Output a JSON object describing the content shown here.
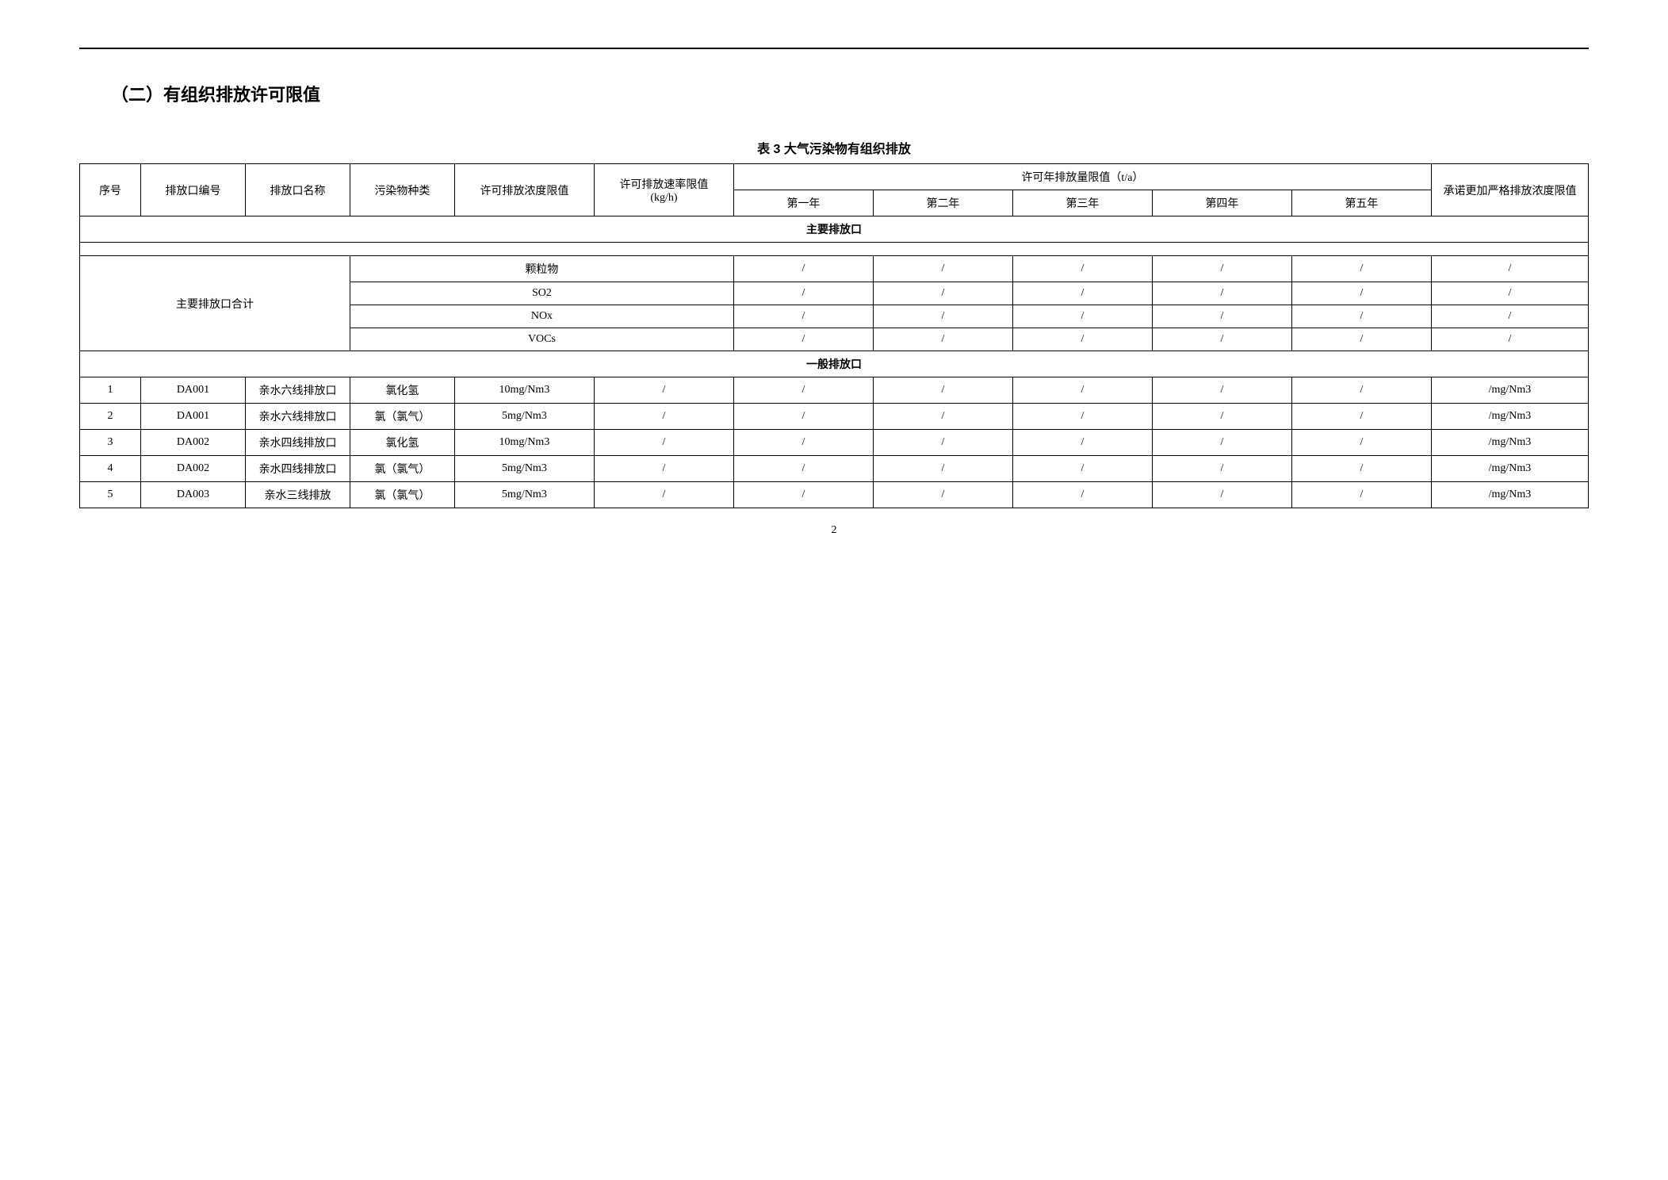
{
  "section_title": "（二）有组织排放许可限值",
  "table_caption": "表 3  大气污染物有组织排放",
  "headers": {
    "seq": "序号",
    "out_code": "排放口编号",
    "out_name": "排放口名称",
    "pollutant": "污染物种类",
    "conc_limit": "许可排放浓度限值",
    "rate_limit_top": "许可排放速率限值",
    "rate_limit_bottom": "(kg/h)",
    "annual_top": "许可年排放量限值（t/a）",
    "y1": "第一年",
    "y2": "第二年",
    "y3": "第三年",
    "y4": "第四年",
    "y5": "第五年",
    "strict_top": "承诺更加严格排放浓度限值"
  },
  "sections": {
    "main": "主要排放口",
    "general": "一般排放口"
  },
  "main_total_label": "主要排放口合计",
  "main_rows": [
    {
      "pollutant": "颗粒物",
      "y1": "/",
      "y2": "/",
      "y3": "/",
      "y4": "/",
      "y5": "/",
      "strict": "/"
    },
    {
      "pollutant": "SO2",
      "y1": "/",
      "y2": "/",
      "y3": "/",
      "y4": "/",
      "y5": "/",
      "strict": "/"
    },
    {
      "pollutant": "NOx",
      "y1": "/",
      "y2": "/",
      "y3": "/",
      "y4": "/",
      "y5": "/",
      "strict": "/"
    },
    {
      "pollutant": "VOCs",
      "y1": "/",
      "y2": "/",
      "y3": "/",
      "y4": "/",
      "y5": "/",
      "strict": "/"
    }
  ],
  "general_rows": [
    {
      "seq": "1",
      "code": "DA001",
      "name": "亲水六线排放口",
      "pollutant": "氯化氢",
      "conc": "10mg/Nm3",
      "rate": "/",
      "y1": "/",
      "y2": "/",
      "y3": "/",
      "y4": "/",
      "y5": "/",
      "strict": "/mg/Nm3"
    },
    {
      "seq": "2",
      "code": "DA001",
      "name": "亲水六线排放口",
      "pollutant": "氯（氯气）",
      "conc": "5mg/Nm3",
      "rate": "/",
      "y1": "/",
      "y2": "/",
      "y3": "/",
      "y4": "/",
      "y5": "/",
      "strict": "/mg/Nm3"
    },
    {
      "seq": "3",
      "code": "DA002",
      "name": "亲水四线排放口",
      "pollutant": "氯化氢",
      "conc": "10mg/Nm3",
      "rate": "/",
      "y1": "/",
      "y2": "/",
      "y3": "/",
      "y4": "/",
      "y5": "/",
      "strict": "/mg/Nm3"
    },
    {
      "seq": "4",
      "code": "DA002",
      "name": "亲水四线排放口",
      "pollutant": "氯（氯气）",
      "conc": "5mg/Nm3",
      "rate": "/",
      "y1": "/",
      "y2": "/",
      "y3": "/",
      "y4": "/",
      "y5": "/",
      "strict": "/mg/Nm3"
    },
    {
      "seq": "5",
      "code": "DA003",
      "name": "亲水三线排放",
      "pollutant": "氯（氯气）",
      "conc": "5mg/Nm3",
      "rate": "/",
      "y1": "/",
      "y2": "/",
      "y3": "/",
      "y4": "/",
      "y5": "/",
      "strict": "/mg/Nm3"
    }
  ],
  "page_number": "2"
}
